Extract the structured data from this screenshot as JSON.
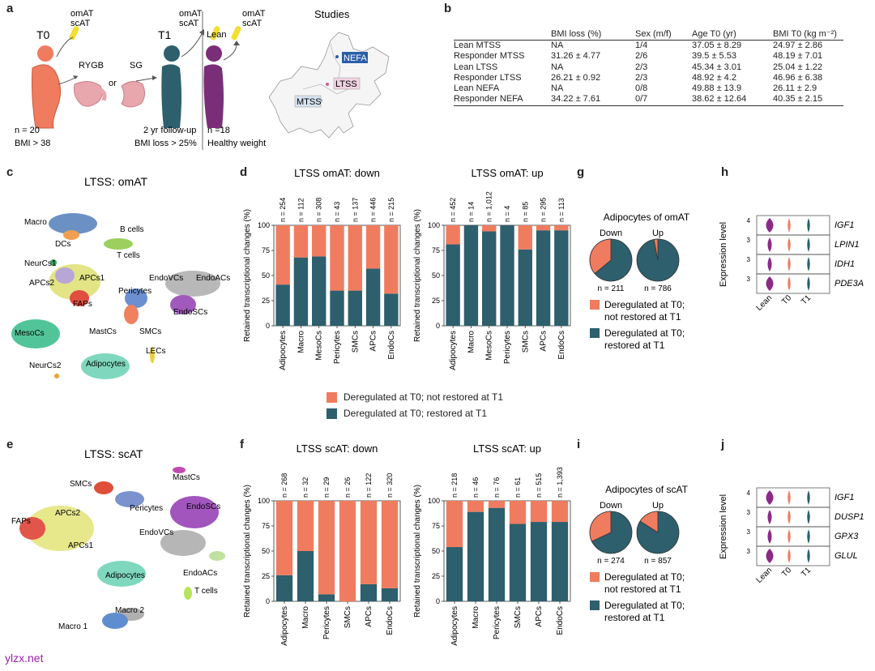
{
  "colors": {
    "red": "#f07c5f",
    "teal": "#2d5f6d",
    "purple": "#7b2e78",
    "yellow": "#f3de33",
    "pink": "#e8a6ad"
  },
  "panel_a": {
    "letter": "a",
    "t0": "T0",
    "t1": "T1",
    "lean": "Lean",
    "omat_scat_1": [
      "omAT",
      "scAT"
    ],
    "omat_scat_2": [
      "omAT",
      "scAT"
    ],
    "omat_scat_3": [
      "omAT",
      "scAT"
    ],
    "rygb": "RYGB",
    "or": "or",
    "sg": "SG",
    "n_t0": "n = 20",
    "bmi_t0": "BMI > 38",
    "followup": "2 yr follow-up",
    "bmi_loss": "BMI loss > 25%",
    "n_lean": "n =18",
    "healthy": "Healthy weight",
    "studies_title": "Studies",
    "map_labels": [
      "NEFA",
      "LTSS",
      "MTSS"
    ]
  },
  "panel_b": {
    "letter": "b",
    "headers": [
      "",
      "BMI loss (%)",
      "Sex (m/f)",
      "Age T0 (yr)",
      "BMI T0 (kg m⁻²)"
    ],
    "rows": [
      [
        "Lean MTSS",
        "NA",
        "1/4",
        "37.05 ± 8.29",
        "24.97 ± 2.86"
      ],
      [
        "Responder MTSS",
        "31.26 ± 4.77",
        "2/6",
        "39.5 ± 5.53",
        "48.19 ± 7.01"
      ],
      [
        "Lean LTSS",
        "NA",
        "2/3",
        "45.34 ± 3.01",
        "25.04 ± 1.22"
      ],
      [
        "Responder LTSS",
        "26.21 ± 0.92",
        "2/3",
        "48.92 ± 4.2",
        "46.96 ± 6.38"
      ],
      [
        "Lean NEFA",
        "NA",
        "0/8",
        "49.88 ± 13.9",
        "26.11 ± 2.9"
      ],
      [
        "Responder NEFA",
        "34.22 ± 7.61",
        "0/7",
        "38.62 ± 12.64",
        "40.35 ± 2.15"
      ]
    ]
  },
  "panel_c": {
    "letter": "c",
    "title": "LTSS: omAT",
    "clusters": [
      "Macro",
      "DCs",
      "B cells",
      "T cells",
      "NeurCs1",
      "APCs2",
      "APCs1",
      "FAPs",
      "EndoVCs",
      "EndoACs",
      "Pericytes",
      "EndoSCs",
      "SMCs",
      "MastCs",
      "MesoCs",
      "NeurCs2",
      "Adipocytes",
      "LECs"
    ]
  },
  "panel_e": {
    "letter": "e",
    "title": "LTSS: scAT",
    "clusters": [
      "MastCs",
      "SMCs",
      "Pericytes",
      "EndoSCs",
      "APCs2",
      "FAPs",
      "APCs1",
      "EndoVCs",
      "EndoACs",
      "Adipocytes",
      "T cells",
      "Macro 2",
      "Macro 1"
    ]
  },
  "chart_data": [
    {
      "id": "d_down",
      "type": "bar",
      "stacked": true,
      "title": "LTSS omAT: down",
      "ylabel": "Retained transcriptional changes (%)",
      "ylim": [
        0,
        100
      ],
      "yticks": [
        0,
        25,
        50,
        75,
        100
      ],
      "categories": [
        "Adipocytes",
        "Macro",
        "MesoCs",
        "Pericytes",
        "SMCs",
        "APCs",
        "EndoCs"
      ],
      "n_labels": [
        "n = 254",
        "n = 112",
        "n = 308",
        "n = 43",
        "n = 137",
        "n = 446",
        "n = 215"
      ],
      "series": [
        {
          "name": "Deregulated at T0; restored at T1",
          "values": [
            41,
            68,
            69,
            35,
            35,
            57,
            32
          ]
        },
        {
          "name": "Deregulated at T0; not restored at T1",
          "values": [
            59,
            32,
            31,
            65,
            65,
            43,
            68
          ]
        }
      ]
    },
    {
      "id": "d_up",
      "type": "bar",
      "stacked": true,
      "title": "LTSS omAT: up",
      "ylabel": "Retained transcriptional changes (%)",
      "ylim": [
        0,
        100
      ],
      "yticks": [
        0,
        25,
        50,
        75,
        100
      ],
      "categories": [
        "Adipocytes",
        "Macro",
        "MesoCs",
        "Pericytes",
        "SMCs",
        "APCs",
        "EndoCs"
      ],
      "n_labels": [
        "n = 452",
        "n = 14",
        "n = 1,012",
        "n = 4",
        "n = 85",
        "n = 295",
        "n = 113"
      ],
      "series": [
        {
          "name": "Deregulated at T0; restored at T1",
          "values": [
            81,
            100,
            94,
            100,
            76,
            95,
            95
          ]
        },
        {
          "name": "Deregulated at T0; not restored at T1",
          "values": [
            19,
            0,
            6,
            0,
            24,
            5,
            5
          ]
        }
      ]
    },
    {
      "id": "f_down",
      "type": "bar",
      "stacked": true,
      "title": "LTSS scAT: down",
      "ylabel": "Retained transcriptional changes (%)",
      "ylim": [
        0,
        100
      ],
      "yticks": [
        0,
        25,
        50,
        75,
        100
      ],
      "categories": [
        "Adipocytes",
        "Macro",
        "Pericytes",
        "SMCs",
        "APCs",
        "EndoCs"
      ],
      "n_labels": [
        "n = 268",
        "n = 32",
        "n = 29",
        "n = 26",
        "n = 122",
        "n = 320"
      ],
      "series": [
        {
          "name": "Deregulated at T0; restored at T1",
          "values": [
            26,
            50,
            7,
            0,
            17,
            13
          ]
        },
        {
          "name": "Deregulated at T0; not restored at T1",
          "values": [
            74,
            50,
            93,
            100,
            83,
            87
          ]
        }
      ]
    },
    {
      "id": "f_up",
      "type": "bar",
      "stacked": true,
      "title": "LTSS scAT: up",
      "ylabel": "Retained transcriptional changes (%)",
      "ylim": [
        0,
        100
      ],
      "yticks": [
        0,
        25,
        50,
        75,
        100
      ],
      "categories": [
        "Adipocytes",
        "Macro",
        "Pericytes",
        "SMCs",
        "APCs",
        "EndoCs"
      ],
      "n_labels": [
        "n = 218",
        "n = 46",
        "n = 76",
        "n = 61",
        "n = 515",
        "n = 1,393"
      ],
      "series": [
        {
          "name": "Deregulated at T0; restored at T1",
          "values": [
            54,
            89,
            93,
            77,
            79,
            79
          ]
        },
        {
          "name": "Deregulated at T0; not restored at T1",
          "values": [
            46,
            11,
            7,
            23,
            21,
            21
          ]
        }
      ]
    },
    {
      "id": "g",
      "type": "pie",
      "title": "Adipocytes of omAT",
      "pies": [
        {
          "label": "Down",
          "n": "n = 211",
          "restored": 0.64,
          "not_restored": 0.36
        },
        {
          "label": "Up",
          "n": "n = 786",
          "restored": 0.97,
          "not_restored": 0.03
        }
      ]
    },
    {
      "id": "i",
      "type": "pie",
      "title": "Adipocytes of scAT",
      "pies": [
        {
          "label": "Down",
          "n": "n = 274",
          "restored": 0.68,
          "not_restored": 0.32
        },
        {
          "label": "Up",
          "n": "n = 857",
          "restored": 0.84,
          "not_restored": 0.16
        }
      ]
    }
  ],
  "panel_d": {
    "letter": "d"
  },
  "panel_f": {
    "letter": "f"
  },
  "panel_g": {
    "letter": "g"
  },
  "panel_i": {
    "letter": "i"
  },
  "legend": {
    "not_restored": "Deregulated at T0; not restored at T1",
    "restored": "Deregulated at T0; restored at T1"
  },
  "pie_legend": {
    "not_restored_1": "Deregulated at T0;",
    "not_restored_2": "not restored at T1",
    "restored_1": "Deregulated at T0;",
    "restored_2": "restored at T1"
  },
  "panel_h": {
    "letter": "h",
    "ylabel": "Expression level",
    "genes": [
      "IGF1",
      "LPIN1",
      "IDH1",
      "PDE3A"
    ],
    "ticks": [
      "4",
      "3",
      "3",
      "3"
    ],
    "groups": [
      "Lean",
      "T0",
      "T1"
    ]
  },
  "panel_j": {
    "letter": "j",
    "ylabel": "Expression level",
    "genes": [
      "IGF1",
      "DUSP1",
      "GPX3",
      "GLUL"
    ],
    "ticks": [
      "4",
      "3",
      "3",
      "3"
    ],
    "groups": [
      "Lean",
      "T0",
      "T1"
    ]
  },
  "watermark": "ylzx.net"
}
